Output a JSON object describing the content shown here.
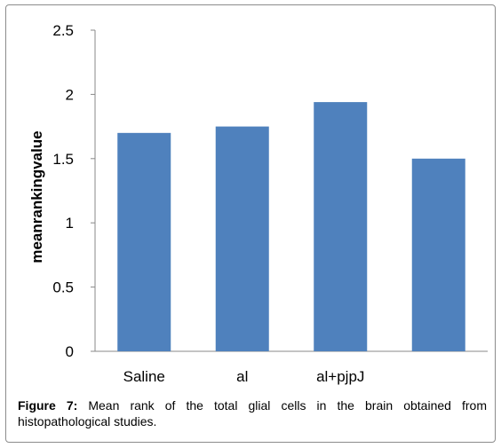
{
  "chart_data": {
    "type": "bar",
    "categories": [
      "Saline",
      "al",
      "al+pjpJ",
      ""
    ],
    "values": [
      1.7,
      1.75,
      1.94,
      1.5
    ],
    "ylabel": "meanrankingvalue",
    "xlabel": "",
    "ylim": [
      0,
      2.5
    ],
    "yticks": [
      "0",
      "0.5",
      "1",
      "1.5",
      "2",
      "2.5"
    ],
    "ytick_values": [
      0,
      0.5,
      1,
      1.5,
      2,
      2.5
    ],
    "grid": false,
    "bar_color": "#4f81bd"
  },
  "caption": {
    "label": "Figure 7:",
    "text": " Mean rank of the total glial cells in the brain obtained from histopathological studies."
  }
}
